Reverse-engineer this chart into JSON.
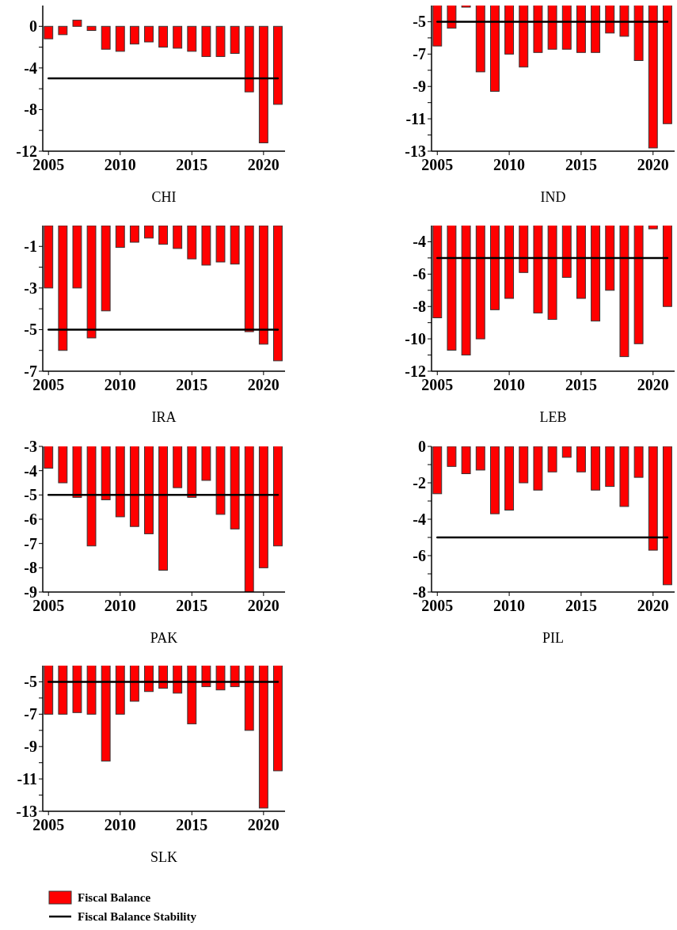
{
  "chart_data": [
    {
      "type": "bar",
      "xlabel": "CHI",
      "x": [
        2005,
        2006,
        2007,
        2008,
        2009,
        2010,
        2011,
        2012,
        2013,
        2014,
        2015,
        2016,
        2017,
        2018,
        2019,
        2020,
        2021
      ],
      "xlim": [
        2004.6,
        2021.5
      ],
      "xticks": [
        2005,
        2010,
        2015,
        2020
      ],
      "ylim": [
        -12,
        2
      ],
      "yticks": [
        0,
        {
          "value": -2,
          "label": null
        },
        -4,
        {
          "value": -6,
          "label": null
        },
        -8,
        {
          "value": -10,
          "label": null
        },
        -12
      ],
      "series": [
        {
          "color": "#ff0000",
          "values": [
            -1.2,
            -0.8,
            0.6,
            -0.4,
            -2.2,
            -2.4,
            -1.7,
            -1.5,
            -2.0,
            -2.1,
            -2.4,
            -2.9,
            -2.9,
            -2.6,
            -6.3,
            -11.2,
            -7.5
          ]
        },
        {
          "type": "line",
          "color": "#000000",
          "values": [
            -5,
            -5,
            -5,
            -5,
            -5,
            -5,
            -5,
            -5,
            -5,
            -5,
            -5,
            -5,
            -5,
            -5,
            -5,
            -5,
            -5
          ]
        }
      ]
    },
    {
      "type": "bar",
      "xlabel": "IND",
      "x": [
        2005,
        2006,
        2007,
        2008,
        2009,
        2010,
        2011,
        2012,
        2013,
        2014,
        2015,
        2016,
        2017,
        2018,
        2019,
        2020,
        2021
      ],
      "xlim": [
        2004.6,
        2021.5
      ],
      "xticks": [
        2005,
        2010,
        2015,
        2020
      ],
      "ylim": [
        -13,
        -4
      ],
      "yticks": [
        -5,
        {
          "value": -6,
          "label": null
        },
        -7,
        {
          "value": -8,
          "label": null
        },
        -9,
        {
          "value": -10,
          "label": null
        },
        -11,
        {
          "value": -12,
          "label": null
        },
        -13
      ],
      "series": [
        {
          "color": "#ff0000",
          "values": [
            -6.5,
            -5.4,
            -4.1,
            -8.1,
            -9.3,
            -7.0,
            -7.8,
            -6.9,
            -6.7,
            -6.7,
            -6.9,
            -6.9,
            -5.7,
            -5.9,
            -7.4,
            -12.8,
            -11.3
          ]
        },
        {
          "type": "line",
          "color": "#000000",
          "values": [
            -5,
            -5,
            -5,
            -5,
            -5,
            -5,
            -5,
            -5,
            -5,
            -5,
            -5,
            -5,
            -5,
            -5,
            -5,
            -5,
            -5
          ]
        }
      ]
    },
    {
      "type": "bar",
      "xlabel": "IRA",
      "x": [
        2005,
        2006,
        2007,
        2008,
        2009,
        2010,
        2011,
        2012,
        2013,
        2014,
        2015,
        2016,
        2017,
        2018,
        2019,
        2020,
        2021
      ],
      "xlim": [
        2004.6,
        2021.5
      ],
      "xticks": [
        2005,
        2010,
        2015,
        2020
      ],
      "ylim": [
        -7,
        0
      ],
      "yticks": [
        -1,
        {
          "value": -2,
          "label": null
        },
        -3,
        {
          "value": -4,
          "label": null
        },
        -5,
        {
          "value": -6,
          "label": null
        },
        -7
      ],
      "series": [
        {
          "color": "#ff0000",
          "values": [
            -3.0,
            -6.0,
            -3.0,
            -5.4,
            -4.1,
            -1.05,
            -0.8,
            -0.6,
            -0.9,
            -1.1,
            -1.6,
            -1.9,
            -1.75,
            -1.85,
            -5.1,
            -5.7,
            -6.5
          ]
        },
        {
          "type": "line",
          "color": "#000000",
          "values": [
            -5,
            -5,
            -5,
            -5,
            -5,
            -5,
            -5,
            -5,
            -5,
            -5,
            -5,
            -5,
            -5,
            -5,
            -5,
            -5,
            -5
          ]
        }
      ]
    },
    {
      "type": "bar",
      "xlabel": "LEB",
      "x": [
        2005,
        2006,
        2007,
        2008,
        2009,
        2010,
        2011,
        2012,
        2013,
        2014,
        2015,
        2016,
        2017,
        2018,
        2019,
        2020,
        2021
      ],
      "xlim": [
        2004.6,
        2021.5
      ],
      "xticks": [
        2005,
        2010,
        2015,
        2020
      ],
      "ylim": [
        -12,
        -3
      ],
      "yticks": [
        -4,
        {
          "value": -5,
          "label": null
        },
        -6,
        {
          "value": -7,
          "label": null
        },
        -8,
        {
          "value": -9,
          "label": null
        },
        -10,
        {
          "value": -11,
          "label": null
        },
        -12
      ],
      "series": [
        {
          "color": "#ff0000",
          "values": [
            -8.7,
            -10.7,
            -11.0,
            -10.0,
            -8.2,
            -7.5,
            -5.9,
            -8.4,
            -8.8,
            -6.2,
            -7.5,
            -8.9,
            -7.0,
            -11.1,
            -10.3,
            -3.2,
            -8.0
          ]
        },
        {
          "type": "line",
          "color": "#000000",
          "values": [
            -5,
            -5,
            -5,
            -5,
            -5,
            -5,
            -5,
            -5,
            -5,
            -5,
            -5,
            -5,
            -5,
            -5,
            -5,
            -5,
            -5
          ]
        }
      ]
    },
    {
      "type": "bar",
      "xlabel": "PAK",
      "x": [
        2005,
        2006,
        2007,
        2008,
        2009,
        2010,
        2011,
        2012,
        2013,
        2014,
        2015,
        2016,
        2017,
        2018,
        2019,
        2020,
        2021
      ],
      "xlim": [
        2004.6,
        2021.5
      ],
      "xticks": [
        2005,
        2010,
        2015,
        2020
      ],
      "ylim": [
        -9,
        -3
      ],
      "yticks": [
        -3,
        -4,
        -5,
        -6,
        -7,
        -8,
        -9
      ],
      "series": [
        {
          "color": "#ff0000",
          "values": [
            -3.9,
            -4.5,
            -5.1,
            -7.1,
            -5.2,
            -5.9,
            -6.3,
            -6.6,
            -8.1,
            -4.7,
            -5.1,
            -4.4,
            -5.8,
            -6.4,
            -9.0,
            -8.0,
            -7.1
          ]
        },
        {
          "type": "line",
          "color": "#000000",
          "values": [
            -5,
            -5,
            -5,
            -5,
            -5,
            -5,
            -5,
            -5,
            -5,
            -5,
            -5,
            -5,
            -5,
            -5,
            -5,
            -5,
            -5
          ]
        }
      ]
    },
    {
      "type": "bar",
      "xlabel": "PIL",
      "x": [
        2005,
        2006,
        2007,
        2008,
        2009,
        2010,
        2011,
        2012,
        2013,
        2014,
        2015,
        2016,
        2017,
        2018,
        2019,
        2020,
        2021
      ],
      "xlim": [
        2004.6,
        2021.5
      ],
      "xticks": [
        2005,
        2010,
        2015,
        2020
      ],
      "ylim": [
        -8,
        0
      ],
      "yticks": [
        0,
        {
          "value": -1,
          "label": null
        },
        -2,
        {
          "value": -3,
          "label": null
        },
        -4,
        {
          "value": -5,
          "label": null
        },
        -6,
        {
          "value": -7,
          "label": null
        },
        -8
      ],
      "series": [
        {
          "color": "#ff0000",
          "values": [
            -2.6,
            -1.1,
            -1.5,
            -1.3,
            -3.7,
            -3.5,
            -2.0,
            -2.4,
            -1.4,
            -0.6,
            -1.4,
            -2.4,
            -2.2,
            -3.3,
            -1.7,
            -5.7,
            -7.6
          ]
        },
        {
          "type": "line",
          "color": "#000000",
          "values": [
            -5,
            -5,
            -5,
            -5,
            -5,
            -5,
            -5,
            -5,
            -5,
            -5,
            -5,
            -5,
            -5,
            -5,
            -5,
            -5,
            -5
          ]
        }
      ]
    },
    {
      "type": "bar",
      "xlabel": "SLK",
      "x": [
        2005,
        2006,
        2007,
        2008,
        2009,
        2010,
        2011,
        2012,
        2013,
        2014,
        2015,
        2016,
        2017,
        2018,
        2019,
        2020,
        2021
      ],
      "xlim": [
        2004.6,
        2021.5
      ],
      "xticks": [
        2005,
        2010,
        2015,
        2020
      ],
      "ylim": [
        -13,
        -4
      ],
      "yticks": [
        -5,
        {
          "value": -6,
          "label": null
        },
        -7,
        {
          "value": -8,
          "label": null
        },
        -9,
        {
          "value": -10,
          "label": null
        },
        -11,
        {
          "value": -12,
          "label": null
        },
        -13
      ],
      "legend": "bottom",
      "series": [
        {
          "name": "Fiscal Balance",
          "color": "#ff0000",
          "values": [
            -7.0,
            -7.0,
            -6.9,
            -7.0,
            -9.9,
            -7.0,
            -6.2,
            -5.6,
            -5.4,
            -5.7,
            -7.6,
            -5.3,
            -5.5,
            -5.3,
            -8.0,
            -12.8,
            -10.5
          ]
        },
        {
          "type": "line",
          "name": "Fiscal Balance Stability",
          "color": "#000000",
          "values": [
            -5,
            -5,
            -5,
            -5,
            -5,
            -5,
            -5,
            -5,
            -5,
            -5,
            -5,
            -5,
            -5,
            -5,
            -5,
            -5,
            -5
          ]
        }
      ]
    }
  ]
}
